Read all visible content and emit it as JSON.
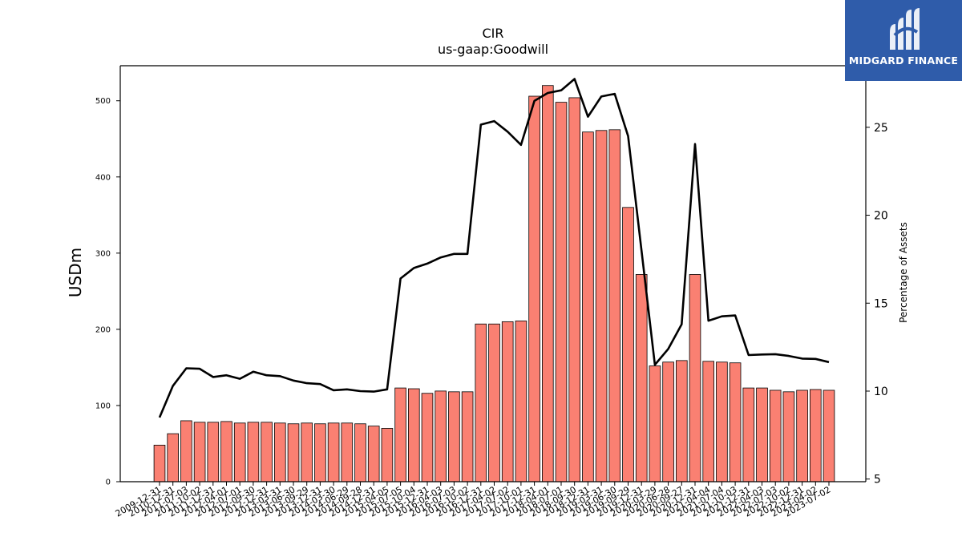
{
  "logo": {
    "text": "MIDGARD FINANCE",
    "icon": "midgard-logo-icon",
    "color": "#2f5caa"
  },
  "chart_data": {
    "type": "bar",
    "title": "CIR",
    "subtitle": "us-gaap:Goodwill",
    "ylabel": "USDm",
    "y2label": "Percentage of Assets",
    "ylim": [
      0,
      546
    ],
    "y2lim": [
      4.85,
      28.5
    ],
    "yticks": [
      0,
      100,
      200,
      300,
      400,
      500
    ],
    "y2ticks": [
      5,
      10,
      15,
      20,
      25
    ],
    "grid": false,
    "bar_color": "#fa8072",
    "line_color": "#000000",
    "categories": [
      "2009-12-31",
      "2010-12-31",
      "2011-07-03",
      "2011-10-02",
      "2011-12-31",
      "2012-04-01",
      "2012-07-01",
      "2012-09-30",
      "2012-12-31",
      "2013-03-31",
      "2013-06-30",
      "2013-09-29",
      "2013-12-31",
      "2014-03-30",
      "2014-06-29",
      "2014-09-28",
      "2014-12-31",
      "2015-04-05",
      "2015-07-05",
      "2015-10-04",
      "2015-12-31",
      "2016-04-03",
      "2016-07-03",
      "2016-10-02",
      "2016-12-31",
      "2017-04-02",
      "2017-07-02",
      "2017-10-01",
      "2017-12-31",
      "2018-04-01",
      "2018-07-01",
      "2018-09-30",
      "2018-12-31",
      "2019-03-31",
      "2019-06-30",
      "2019-09-29",
      "2019-12-31",
      "2020-03-29",
      "2020-06-28",
      "2020-09-27",
      "2020-12-31",
      "2021-04-04",
      "2021-07-04",
      "2021-10-03",
      "2021-12-31",
      "2022-04-03",
      "2022-07-03",
      "2022-10-02",
      "2022-12-31",
      "2023-04-02",
      "2023-07-02"
    ],
    "series": [
      {
        "kind": "bar",
        "axis": "left",
        "values": [
          48,
          63,
          80,
          78,
          78,
          79,
          77,
          78,
          78,
          77,
          76,
          77,
          76,
          77,
          77,
          76,
          73,
          70,
          123,
          122,
          116,
          119,
          118,
          118,
          207,
          207,
          210,
          211,
          506,
          520,
          498,
          504,
          459,
          461,
          462,
          360,
          272,
          152,
          157,
          159,
          272,
          158,
          157,
          156,
          123,
          123,
          120,
          118,
          120,
          121,
          120
        ]
      },
      {
        "kind": "line",
        "axis": "right",
        "values": [
          8.5,
          10.3,
          11.3,
          11.27,
          10.8,
          10.9,
          10.7,
          11.1,
          10.9,
          10.85,
          10.6,
          10.45,
          10.4,
          10.05,
          10.1,
          10.0,
          9.97,
          10.1,
          16.4,
          17.0,
          17.25,
          17.6,
          17.8,
          17.8,
          25.15,
          25.35,
          24.75,
          24.0,
          26.5,
          26.95,
          27.1,
          27.75,
          25.6,
          26.75,
          26.9,
          24.5,
          18.0,
          11.5,
          12.4,
          13.8,
          24.05,
          14.0,
          14.25,
          14.3,
          12.05,
          12.08,
          12.1,
          12.0,
          11.85,
          11.83,
          11.65
        ]
      }
    ]
  }
}
